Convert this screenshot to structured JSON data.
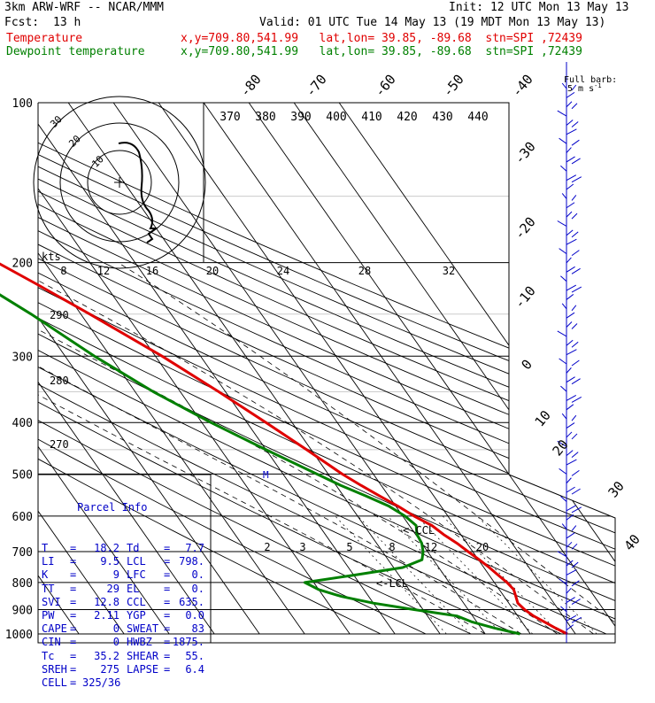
{
  "header": {
    "model": "3km ARW-WRF -- NCAR/MMM",
    "init": "Init: 12 UTC Mon 13 May 13",
    "fcst_label": "Fcst:",
    "fcst_value": "13 h",
    "valid": "Valid: 01 UTC Tue 14 May 13 (19 MDT Mon 13 May 13)"
  },
  "legend": [
    {
      "name": "Temperature",
      "info": "x,y=709.80,541.99   lat,lon= 39.85, -89.68  stn=SPI ,72439",
      "color": "#e00000"
    },
    {
      "name": "Dewpoint temperature",
      "info": "x,y=709.80,541.99   lat,lon= 39.85, -89.68  stn=SPI ,72439",
      "color": "#008000"
    }
  ],
  "barb_legend": {
    "title": "Full barb:",
    "value": "5 m s",
    "sup": "-1"
  },
  "hodograph": {
    "ring_labels": [
      "30",
      "20",
      "10"
    ],
    "speed_label": "kts",
    "speed_ticks": [
      "8",
      "12",
      "16",
      "20",
      "24",
      "28",
      "32"
    ]
  },
  "parcel_info": {
    "title": "Parcel Info",
    "rows": [
      [
        "T",
        "=",
        "18.2",
        "Td",
        "=",
        "7.7"
      ],
      [
        "LI",
        "=",
        "9.5",
        "LCL",
        "=",
        "798."
      ],
      [
        "K",
        "=",
        "9",
        "LFC",
        "=",
        "0."
      ],
      [
        "TT",
        "=",
        "29",
        "EL",
        "=",
        "0."
      ],
      [
        "SVI",
        "=",
        "12.8",
        "CCL",
        "=",
        "635."
      ],
      [
        "PW",
        "=",
        "2.11",
        "YGP",
        "=",
        "0.0"
      ],
      [
        "CAPE",
        "=",
        "0",
        "SWEAT",
        "=",
        "83"
      ],
      [
        "CIN",
        "=",
        "0",
        "HWBZ",
        "=",
        "1875."
      ],
      [
        "Tc",
        "=",
        "35.2",
        "SHEAR",
        "=",
        "55."
      ],
      [
        "SREH",
        "=",
        "275",
        "LAPSE",
        "=",
        "6.4"
      ],
      [
        "CELL",
        "=",
        "325/36",
        "",
        "",
        ""
      ]
    ]
  },
  "annotations": {
    "ccl": "<-CCL",
    "lcl": "<-LCL"
  },
  "chart_data": {
    "type": "line",
    "pressure_levels": [
      100,
      200,
      300,
      400,
      500,
      600,
      700,
      800,
      900,
      1000
    ],
    "isotherm_labels": [
      "-80",
      "-70",
      "-60",
      "-50",
      "-40",
      "-30",
      "-20",
      "-10",
      "0",
      "10",
      "20",
      "30",
      "40"
    ],
    "theta_labels_top": [
      "370",
      "380",
      "390",
      "400",
      "410",
      "420",
      "430",
      "440"
    ],
    "theta_labels_left": [
      "290",
      "280",
      "270"
    ],
    "mixing_ratio_labels": [
      "2",
      "3",
      "5",
      "8",
      "12",
      "20"
    ],
    "series": [
      {
        "name": "Temperature",
        "color": "#e00000",
        "points": [
          [
            1000,
            18.2
          ],
          [
            975,
            16.5
          ],
          [
            950,
            15.0
          ],
          [
            925,
            13.5
          ],
          [
            900,
            12.5
          ],
          [
            875,
            12.0
          ],
          [
            850,
            12.6
          ],
          [
            825,
            13.2
          ],
          [
            800,
            12.8
          ],
          [
            775,
            12.0
          ],
          [
            750,
            11.2
          ],
          [
            725,
            10.2
          ],
          [
            700,
            9.0
          ],
          [
            675,
            7.8
          ],
          [
            650,
            6.2
          ],
          [
            625,
            5.0
          ],
          [
            600,
            2.5
          ],
          [
            575,
            0.5
          ],
          [
            550,
            -2.0
          ],
          [
            525,
            -4.5
          ],
          [
            500,
            -6.9
          ],
          [
            450,
            -11.0
          ],
          [
            400,
            -15.8
          ],
          [
            350,
            -21.5
          ],
          [
            300,
            -28.5
          ],
          [
            250,
            -38.0
          ],
          [
            220,
            -45.0
          ],
          [
            200,
            -50.5
          ],
          [
            175,
            -57.0
          ],
          [
            160,
            -61.0
          ],
          [
            150,
            -63.5
          ],
          [
            140,
            -63.0
          ],
          [
            130,
            -59.5
          ],
          [
            125,
            -55.0
          ],
          [
            120,
            -50.0
          ],
          [
            110,
            -45.0
          ],
          [
            100,
            -42.0
          ]
        ]
      },
      {
        "name": "Dewpoint temperature",
        "color": "#008000",
        "points": [
          [
            1000,
            7.7
          ],
          [
            975,
            3.0
          ],
          [
            950,
            -1.0
          ],
          [
            925,
            -3.5
          ],
          [
            900,
            -12.0
          ],
          [
            875,
            -20.0
          ],
          [
            850,
            -26.0
          ],
          [
            825,
            -30.0
          ],
          [
            800,
            -32.0
          ],
          [
            775,
            -20.0
          ],
          [
            750,
            -8.0
          ],
          [
            725,
            -2.5
          ],
          [
            700,
            -1.0
          ],
          [
            675,
            0.0
          ],
          [
            650,
            0.3
          ],
          [
            625,
            1.5
          ],
          [
            600,
            0.5
          ],
          [
            575,
            -1.5
          ],
          [
            550,
            -5.0
          ],
          [
            525,
            -9.0
          ],
          [
            500,
            -12.5
          ],
          [
            450,
            -20.0
          ],
          [
            400,
            -28.0
          ],
          [
            350,
            -36.0
          ],
          [
            300,
            -43.5
          ],
          [
            250,
            -51.0
          ],
          [
            220,
            -57.0
          ],
          [
            200,
            -62.0
          ],
          [
            175,
            -67.0
          ],
          [
            160,
            -69.5
          ],
          [
            150,
            -71.0
          ],
          [
            140,
            -72.5
          ],
          [
            130,
            -75.0
          ],
          [
            120,
            -80.0
          ],
          [
            110,
            -82.0
          ],
          [
            100,
            -84.0
          ]
        ]
      }
    ],
    "wind_barbs": {
      "units": "m s-1",
      "count": 60
    }
  }
}
